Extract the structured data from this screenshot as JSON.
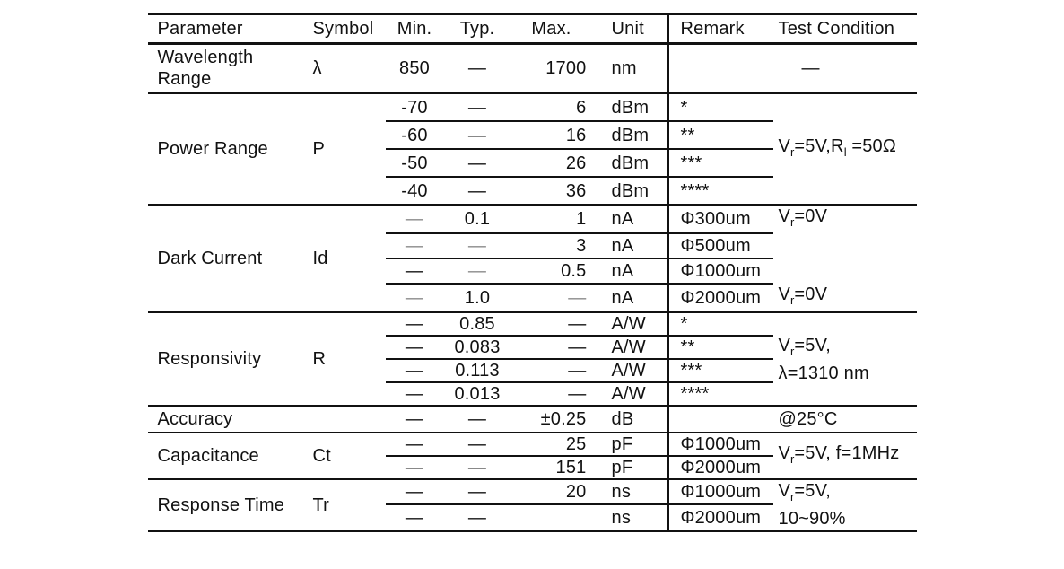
{
  "colors": {
    "background": "#ffffff",
    "text": "#111111",
    "line": "#111111",
    "muted_dash": "#8a8a8a"
  },
  "table": {
    "columns": [
      {
        "key": "parameter",
        "label": "Parameter"
      },
      {
        "key": "symbol",
        "label": "Symbol"
      },
      {
        "key": "min",
        "label": "Min."
      },
      {
        "key": "typ",
        "label": "Typ."
      },
      {
        "key": "max",
        "label": "Max."
      },
      {
        "key": "unit",
        "label": "Unit"
      },
      {
        "key": "remark",
        "label": "Remark"
      },
      {
        "key": "test",
        "label": "Test Condition"
      }
    ],
    "groups": [
      {
        "parameter": "Wavelength Range",
        "symbol": "λ",
        "rows": [
          {
            "min": "850",
            "typ": "—",
            "max": "1700",
            "unit": "nm",
            "remark": "",
            "test": "—"
          }
        ]
      },
      {
        "parameter": "Power Range",
        "symbol": "P",
        "shared_test": [
          "V{r}=5V,R{l} =50Ω"
        ],
        "rows": [
          {
            "min": "-70",
            "typ": "—",
            "max": "6",
            "unit": "dBm",
            "remark": "*"
          },
          {
            "min": "-60",
            "typ": "—",
            "max": "16",
            "unit": "dBm",
            "remark": "**"
          },
          {
            "min": "-50",
            "typ": "—",
            "max": "26",
            "unit": "dBm",
            "remark": "***"
          },
          {
            "min": "-40",
            "typ": "—",
            "max": "36",
            "unit": "dBm",
            "remark": "****"
          }
        ]
      },
      {
        "parameter": "Dark Current",
        "symbol": "Id",
        "rows": [
          {
            "min": {
              "text": "—",
              "muted": true
            },
            "typ": "0.1",
            "max": "1",
            "unit": "nA",
            "remark": "Φ300um",
            "test": "V{r}=0V"
          },
          {
            "min": {
              "text": "—",
              "muted": true
            },
            "typ": {
              "text": "—",
              "muted": true
            },
            "max": "3",
            "unit": "nA",
            "remark": "Φ500um",
            "test": ""
          },
          {
            "min": "—",
            "typ": {
              "text": "—",
              "muted": true
            },
            "max": "0.5",
            "unit": "nA",
            "remark": "Φ1000um",
            "test": ""
          },
          {
            "min": {
              "text": "—",
              "muted": true
            },
            "typ": "1.0",
            "max": {
              "text": "—",
              "muted": true
            },
            "unit": "nA",
            "remark": "Φ2000um",
            "test": "V{r}=0V"
          }
        ]
      },
      {
        "parameter": "Responsivity",
        "symbol": "R",
        "shared_test": [
          "V{r}=5V,",
          "λ=1310 nm"
        ],
        "rows": [
          {
            "min": "—",
            "typ": "0.85",
            "max": "—",
            "unit": "A/W",
            "remark": "*"
          },
          {
            "min": "—",
            "typ": "0.083",
            "max": "—",
            "unit": "A/W",
            "remark": "**"
          },
          {
            "min": "—",
            "typ": "0.113",
            "max": "—",
            "unit": "A/W",
            "remark": "***"
          },
          {
            "min": "—",
            "typ": "0.013",
            "max": "—",
            "unit": "A/W",
            "remark": "****"
          }
        ]
      },
      {
        "parameter": "Accuracy",
        "symbol": "",
        "rows": [
          {
            "min": "—",
            "typ": "—",
            "max": "±0.25",
            "unit": "dB",
            "remark": "",
            "test": "@25°C"
          }
        ]
      },
      {
        "parameter": "Capacitance",
        "symbol": "Ct",
        "shared_test": [
          "V{r}=5V, f=1MHz"
        ],
        "rows": [
          {
            "min": "—",
            "typ": "—",
            "max": "25",
            "unit": "pF",
            "remark": "Φ1000um"
          },
          {
            "min": "—",
            "typ": "—",
            "max": "151",
            "unit": "pF",
            "remark": "Φ2000um"
          }
        ]
      },
      {
        "parameter": "Response Time",
        "symbol": "Tr",
        "shared_test": [
          "V{r}=5V,",
          "10~90%"
        ],
        "rows": [
          {
            "min": "—",
            "typ": "—",
            "max": "20",
            "unit": "ns",
            "remark": "Φ1000um"
          },
          {
            "min": "—",
            "typ": "—",
            "max": "",
            "unit": "ns",
            "remark": "Φ2000um"
          }
        ]
      }
    ]
  }
}
